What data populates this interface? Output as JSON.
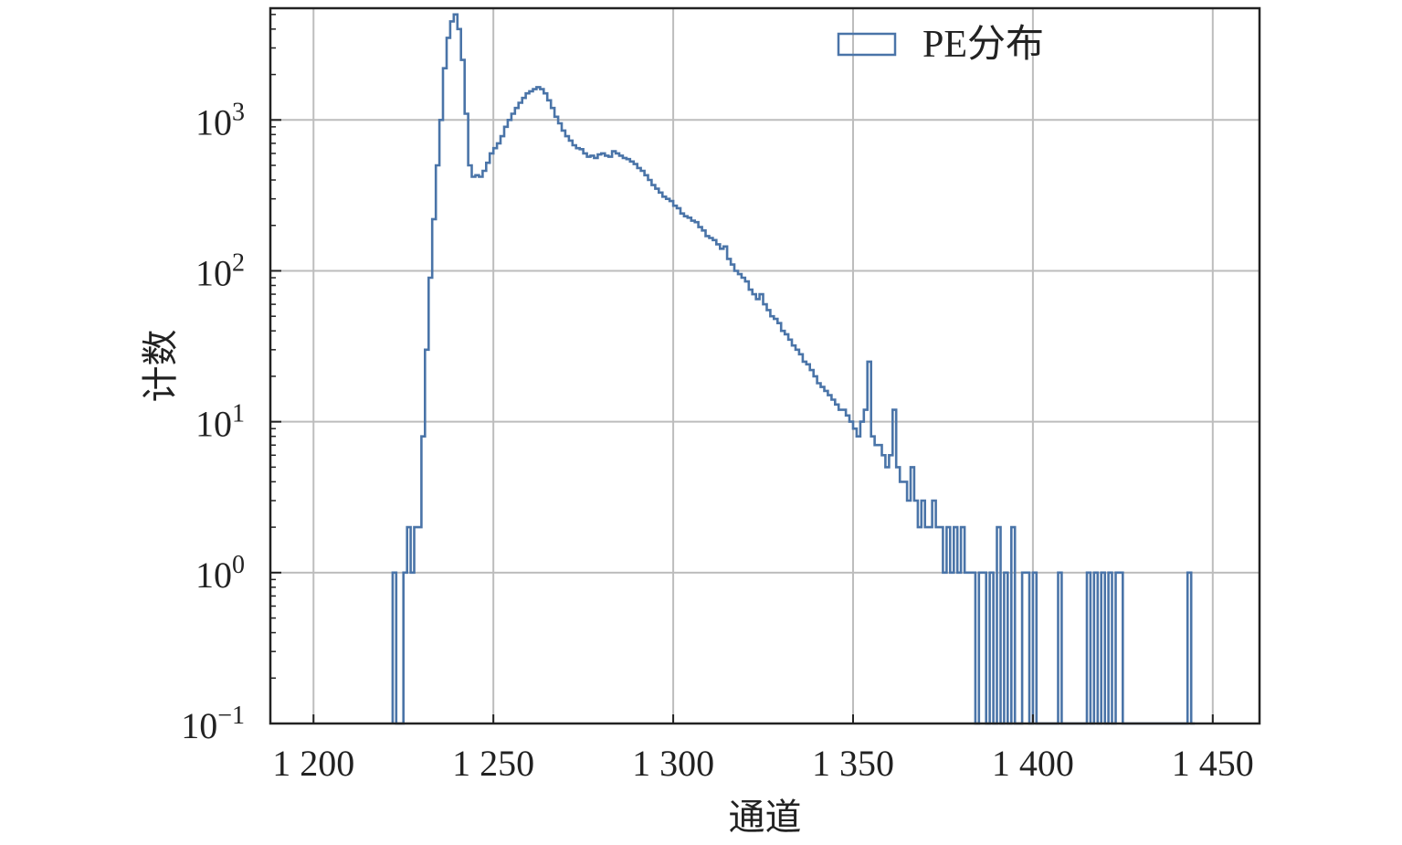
{
  "chart_data": {
    "type": "histogram",
    "xlabel": "通道",
    "ylabel": "计数",
    "xlim": [
      1188,
      1463
    ],
    "ylim": [
      0.1,
      5500
    ],
    "yscale": "log",
    "grid": true,
    "legend_position": "top-right",
    "series_color": "#4a74a8",
    "x_ticks": [
      {
        "value": 1200,
        "label": "1 200"
      },
      {
        "value": 1250,
        "label": "1 250"
      },
      {
        "value": 1300,
        "label": "1 300"
      },
      {
        "value": 1350,
        "label": "1 350"
      },
      {
        "value": 1400,
        "label": "1 400"
      },
      {
        "value": 1450,
        "label": "1 450"
      }
    ],
    "y_ticks": [
      {
        "value": 0.1,
        "base": "10",
        "exp": "−1"
      },
      {
        "value": 1,
        "base": "10",
        "exp": "0"
      },
      {
        "value": 10,
        "base": "10",
        "exp": "1"
      },
      {
        "value": 100,
        "base": "10",
        "exp": "2"
      },
      {
        "value": 1000,
        "base": "10",
        "exp": "3"
      }
    ],
    "series": [
      {
        "name": "PE分布",
        "bins": [
          [
            1222,
            1
          ],
          [
            1223,
            0
          ],
          [
            1224,
            0
          ],
          [
            1225,
            1
          ],
          [
            1226,
            2
          ],
          [
            1227,
            1
          ],
          [
            1228,
            2
          ],
          [
            1229,
            2
          ],
          [
            1230,
            8
          ],
          [
            1231,
            30
          ],
          [
            1232,
            90
          ],
          [
            1233,
            220
          ],
          [
            1234,
            500
          ],
          [
            1235,
            1000
          ],
          [
            1236,
            2200
          ],
          [
            1237,
            3500
          ],
          [
            1238,
            4500
          ],
          [
            1239,
            5000
          ],
          [
            1240,
            4000
          ],
          [
            1241,
            2500
          ],
          [
            1242,
            1100
          ],
          [
            1243,
            500
          ],
          [
            1244,
            420
          ],
          [
            1245,
            430
          ],
          [
            1246,
            420
          ],
          [
            1247,
            460
          ],
          [
            1248,
            520
          ],
          [
            1249,
            600
          ],
          [
            1250,
            650
          ],
          [
            1251,
            700
          ],
          [
            1252,
            780
          ],
          [
            1253,
            900
          ],
          [
            1254,
            1000
          ],
          [
            1255,
            1100
          ],
          [
            1256,
            1200
          ],
          [
            1257,
            1300
          ],
          [
            1258,
            1400
          ],
          [
            1259,
            1500
          ],
          [
            1260,
            1550
          ],
          [
            1261,
            1600
          ],
          [
            1262,
            1650
          ],
          [
            1263,
            1600
          ],
          [
            1264,
            1500
          ],
          [
            1265,
            1350
          ],
          [
            1266,
            1200
          ],
          [
            1267,
            1050
          ],
          [
            1268,
            950
          ],
          [
            1269,
            850
          ],
          [
            1270,
            780
          ],
          [
            1271,
            730
          ],
          [
            1272,
            680
          ],
          [
            1273,
            650
          ],
          [
            1274,
            640
          ],
          [
            1275,
            600
          ],
          [
            1276,
            570
          ],
          [
            1277,
            580
          ],
          [
            1278,
            560
          ],
          [
            1279,
            590
          ],
          [
            1280,
            600
          ],
          [
            1281,
            580
          ],
          [
            1282,
            570
          ],
          [
            1283,
            620
          ],
          [
            1284,
            600
          ],
          [
            1285,
            580
          ],
          [
            1286,
            560
          ],
          [
            1287,
            550
          ],
          [
            1288,
            530
          ],
          [
            1289,
            510
          ],
          [
            1290,
            480
          ],
          [
            1291,
            460
          ],
          [
            1292,
            430
          ],
          [
            1293,
            400
          ],
          [
            1294,
            370
          ],
          [
            1295,
            350
          ],
          [
            1296,
            330
          ],
          [
            1297,
            310
          ],
          [
            1298,
            300
          ],
          [
            1299,
            290
          ],
          [
            1300,
            270
          ],
          [
            1301,
            260
          ],
          [
            1302,
            240
          ],
          [
            1303,
            230
          ],
          [
            1304,
            225
          ],
          [
            1305,
            215
          ],
          [
            1306,
            210
          ],
          [
            1307,
            195
          ],
          [
            1308,
            185
          ],
          [
            1309,
            170
          ],
          [
            1310,
            165
          ],
          [
            1311,
            160
          ],
          [
            1312,
            150
          ],
          [
            1313,
            140
          ],
          [
            1314,
            145
          ],
          [
            1315,
            120
          ],
          [
            1316,
            110
          ],
          [
            1317,
            100
          ],
          [
            1318,
            95
          ],
          [
            1319,
            90
          ],
          [
            1320,
            85
          ],
          [
            1321,
            75
          ],
          [
            1322,
            70
          ],
          [
            1323,
            65
          ],
          [
            1324,
            70
          ],
          [
            1325,
            60
          ],
          [
            1326,
            55
          ],
          [
            1327,
            50
          ],
          [
            1328,
            48
          ],
          [
            1329,
            45
          ],
          [
            1330,
            40
          ],
          [
            1331,
            38
          ],
          [
            1332,
            35
          ],
          [
            1333,
            32
          ],
          [
            1334,
            30
          ],
          [
            1335,
            28
          ],
          [
            1336,
            25
          ],
          [
            1337,
            24
          ],
          [
            1338,
            22
          ],
          [
            1339,
            20
          ],
          [
            1340,
            18
          ],
          [
            1341,
            17
          ],
          [
            1342,
            16
          ],
          [
            1343,
            15
          ],
          [
            1344,
            14
          ],
          [
            1345,
            13
          ],
          [
            1346,
            12
          ],
          [
            1347,
            12
          ],
          [
            1348,
            11
          ],
          [
            1349,
            10
          ],
          [
            1350,
            9
          ],
          [
            1351,
            8
          ],
          [
            1352,
            10
          ],
          [
            1353,
            12
          ],
          [
            1354,
            25
          ],
          [
            1355,
            8
          ],
          [
            1356,
            7
          ],
          [
            1357,
            7
          ],
          [
            1358,
            6
          ],
          [
            1359,
            5
          ],
          [
            1360,
            6
          ],
          [
            1361,
            12
          ],
          [
            1362,
            5
          ],
          [
            1363,
            4
          ],
          [
            1364,
            4
          ],
          [
            1365,
            3
          ],
          [
            1366,
            5
          ],
          [
            1367,
            3
          ],
          [
            1368,
            2
          ],
          [
            1369,
            3
          ],
          [
            1370,
            2
          ],
          [
            1371,
            2
          ],
          [
            1372,
            3
          ],
          [
            1373,
            2
          ],
          [
            1374,
            2
          ],
          [
            1375,
            1
          ],
          [
            1376,
            2
          ],
          [
            1377,
            1
          ],
          [
            1378,
            2
          ],
          [
            1379,
            1
          ],
          [
            1380,
            2
          ],
          [
            1381,
            1
          ],
          [
            1382,
            1
          ],
          [
            1383,
            1
          ],
          [
            1384,
            0
          ],
          [
            1385,
            1
          ],
          [
            1386,
            1
          ],
          [
            1387,
            0
          ],
          [
            1388,
            1
          ],
          [
            1389,
            0
          ],
          [
            1390,
            2
          ],
          [
            1391,
            0
          ],
          [
            1392,
            1
          ],
          [
            1393,
            0
          ],
          [
            1394,
            2
          ],
          [
            1395,
            0
          ],
          [
            1396,
            0
          ],
          [
            1397,
            1
          ],
          [
            1398,
            1
          ],
          [
            1399,
            0
          ],
          [
            1400,
            1
          ],
          [
            1401,
            0
          ],
          [
            1402,
            0
          ],
          [
            1403,
            0
          ],
          [
            1404,
            0
          ],
          [
            1405,
            0
          ],
          [
            1406,
            0
          ],
          [
            1407,
            1
          ],
          [
            1408,
            0
          ],
          [
            1409,
            0
          ],
          [
            1410,
            0
          ],
          [
            1411,
            0
          ],
          [
            1412,
            0
          ],
          [
            1413,
            0
          ],
          [
            1414,
            0
          ],
          [
            1415,
            1
          ],
          [
            1416,
            0
          ],
          [
            1417,
            1
          ],
          [
            1418,
            0
          ],
          [
            1419,
            1
          ],
          [
            1420,
            0
          ],
          [
            1421,
            1
          ],
          [
            1422,
            0
          ],
          [
            1423,
            1
          ],
          [
            1424,
            1
          ],
          [
            1425,
            0
          ],
          [
            1426,
            0
          ],
          [
            1427,
            0
          ],
          [
            1428,
            0
          ],
          [
            1429,
            0
          ],
          [
            1430,
            0
          ],
          [
            1431,
            0
          ],
          [
            1432,
            0
          ],
          [
            1433,
            0
          ],
          [
            1434,
            0
          ],
          [
            1435,
            0
          ],
          [
            1436,
            0
          ],
          [
            1437,
            0
          ],
          [
            1438,
            0
          ],
          [
            1439,
            0
          ],
          [
            1440,
            0
          ],
          [
            1441,
            0
          ],
          [
            1442,
            0
          ],
          [
            1443,
            1
          ],
          [
            1444,
            0
          ]
        ]
      }
    ]
  }
}
